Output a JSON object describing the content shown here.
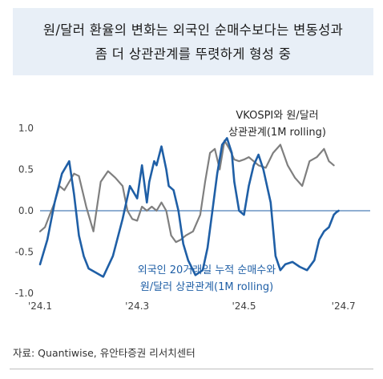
{
  "title": {
    "line1": "원/달러 환율의 변화는 외국인 순매수보다는 변동성과",
    "line2": "좀 더 상관관계를 뚜렷하게 형성 중"
  },
  "source": "자료: Quantiwise, 유안타증권 리서치센터",
  "colors": {
    "flow_series": "#1f5fa6",
    "vkospi_series": "#7f7f7f",
    "zero_line": "#1f5fa6",
    "text": "#404040"
  },
  "chart_data": {
    "type": "line",
    "ylim": [
      -1.0,
      1.0
    ],
    "yticks": [
      "1.0",
      "0.5",
      "0.0",
      "-0.5",
      "-1.0"
    ],
    "ytick_values": [
      1.0,
      0.5,
      0.0,
      -0.5,
      -1.0
    ],
    "xlim": [
      0,
      136
    ],
    "xtick_labels": [
      "'24.1",
      "'24.3",
      "'24.5",
      "'24.7"
    ],
    "xtick_positions": [
      0,
      40,
      84,
      125
    ],
    "grid": false,
    "series": [
      {
        "key": "flow",
        "name": "외국인 20거래일 누적 순매수와 원/달러 상관관계(1M rolling)",
        "label_lines": [
          "외국인 20거래일 누적 순매수와",
          "원/달러 상관관계(1M rolling)"
        ],
        "color": "#1f5fa6",
        "x": [
          0,
          3,
          6,
          9,
          12,
          14,
          16,
          18,
          20,
          23,
          26,
          30,
          34,
          37,
          40,
          42,
          44,
          45,
          47,
          48,
          50,
          52,
          53,
          55,
          57,
          59,
          61,
          64,
          67,
          69,
          71,
          73,
          75,
          77,
          79,
          80,
          82,
          84,
          86,
          88,
          90,
          92,
          95,
          97,
          99,
          101,
          104,
          107,
          110,
          113,
          115,
          117,
          119,
          121,
          122,
          123
        ],
        "y": [
          -0.65,
          -0.35,
          0.1,
          0.45,
          0.6,
          0.2,
          -0.3,
          -0.55,
          -0.7,
          -0.75,
          -0.8,
          -0.55,
          -0.1,
          0.3,
          0.15,
          0.55,
          0.1,
          0.35,
          0.6,
          0.55,
          0.78,
          0.5,
          0.3,
          0.25,
          0.0,
          -0.4,
          -0.6,
          -0.78,
          -0.72,
          -0.45,
          0.0,
          0.45,
          0.8,
          0.88,
          0.7,
          0.35,
          0.0,
          -0.05,
          0.3,
          0.55,
          0.68,
          0.5,
          0.1,
          -0.55,
          -0.72,
          -0.65,
          -0.62,
          -0.68,
          -0.72,
          -0.6,
          -0.35,
          -0.25,
          -0.2,
          -0.05,
          -0.02,
          0.0
        ]
      },
      {
        "key": "vkospi",
        "name": "VKOSPI와 원/달러 상관관계(1M rolling)",
        "label_lines": [
          "VKOSPI와 원/달러",
          "상관관계(1M rolling)"
        ],
        "color": "#7f7f7f",
        "x": [
          0,
          2,
          4,
          6,
          8,
          10,
          12,
          14,
          16,
          19,
          22,
          25,
          28,
          31,
          34,
          36,
          38,
          40,
          42,
          44,
          46,
          48,
          50,
          52,
          54,
          56,
          58,
          60,
          63,
          66,
          68,
          70,
          72,
          74,
          76,
          78,
          80,
          82,
          84,
          86,
          88,
          90,
          93,
          96,
          99,
          102,
          105,
          108,
          111,
          114,
          117,
          119,
          121
        ],
        "y": [
          -0.25,
          -0.2,
          -0.05,
          0.1,
          0.3,
          0.25,
          0.35,
          0.45,
          0.42,
          0.05,
          -0.25,
          0.35,
          0.48,
          0.4,
          0.3,
          0.0,
          -0.1,
          -0.12,
          0.05,
          0.0,
          0.05,
          0.0,
          0.1,
          0.0,
          -0.3,
          -0.38,
          -0.35,
          -0.3,
          -0.25,
          -0.05,
          0.35,
          0.7,
          0.75,
          0.5,
          0.85,
          0.75,
          0.62,
          0.6,
          0.62,
          0.65,
          0.6,
          0.55,
          0.52,
          0.7,
          0.8,
          0.55,
          0.4,
          0.3,
          0.6,
          0.65,
          0.75,
          0.6,
          0.55
        ]
      }
    ]
  }
}
